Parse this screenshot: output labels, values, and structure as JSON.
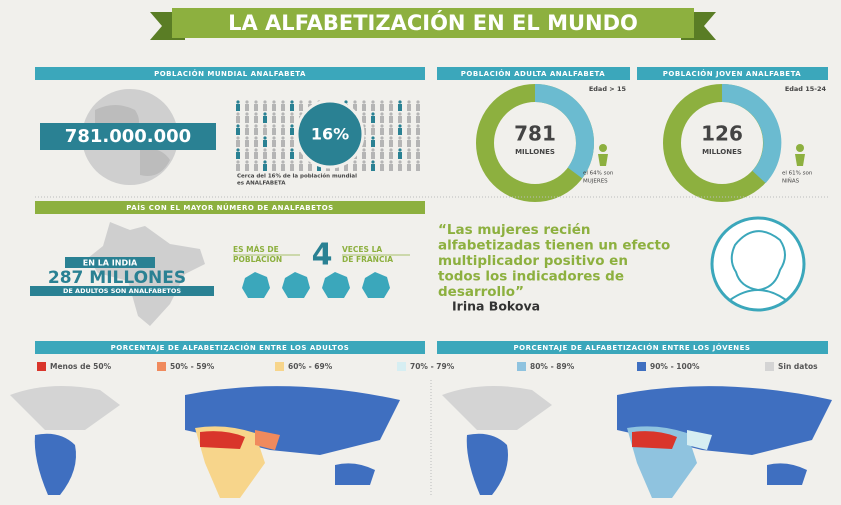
{
  "title": "LA ALFABETIZACIÓN EN EL MUNDO",
  "world": {
    "header": "POBLACIÓN MUNDIAL ANALFABETA",
    "number": "781.000.000",
    "percent": "16%",
    "caption": [
      "Cerca del 16% de la población mundial",
      "es ANALFABETA"
    ]
  },
  "adults": {
    "header": "POBLACIÓN ADULTA ANALFABETA",
    "age": "Edad > 15",
    "number": "781",
    "unit": "MILLONES",
    "note": [
      "el 64% son",
      "MUJERES"
    ]
  },
  "youth": {
    "header": "POBLACIÓN JOVEN ANALFABETA",
    "age": "Edad 15-24",
    "number": "126",
    "unit": "MILLONES",
    "note": [
      "el 61% son",
      "NIÑAS"
    ]
  },
  "country": {
    "header": "PAÍS CON EL MAYOR NÚMERO DE ANALFABETOS",
    "line1": "EN LA INDIA",
    "line2": "287 MILLONES",
    "line3": "DE ADULTOS SON ANALFABETOS",
    "compare_left": [
      "ES MÁS DE",
      "POBLACIÓN"
    ],
    "compare_number": "4",
    "compare_right": [
      "VECES LA",
      "DE FRANCIA"
    ]
  },
  "quote": {
    "lines": [
      "“Las mujeres recién",
      "alfabetizadas tienen un efecto",
      "multiplicador positivo en",
      "todos los indicadores de",
      "desarrollo”"
    ],
    "author": "Irina Bokova"
  },
  "maps": {
    "adults_header": "PORCENTAJE DE ALFABETIZACIÓN ENTRE LOS ADULTOS",
    "youth_header": "PORCENTAJE DE ALFABETIZACIÓN ENTRE LOS JÓVENES",
    "legend": [
      {
        "label": "Menos de 50%",
        "color": "#d9352b"
      },
      {
        "label": "50% - 59%",
        "color": "#f08a5d"
      },
      {
        "label": "60% - 69%",
        "color": "#f7d58b"
      },
      {
        "label": "70% - 79%",
        "color": "#d6eef2"
      },
      {
        "label": "80% - 89%",
        "color": "#8fc3df"
      },
      {
        "label": "90% - 100%",
        "color": "#3f6fc0"
      },
      {
        "label": "Sin datos",
        "color": "#d4d4d4"
      }
    ]
  }
}
